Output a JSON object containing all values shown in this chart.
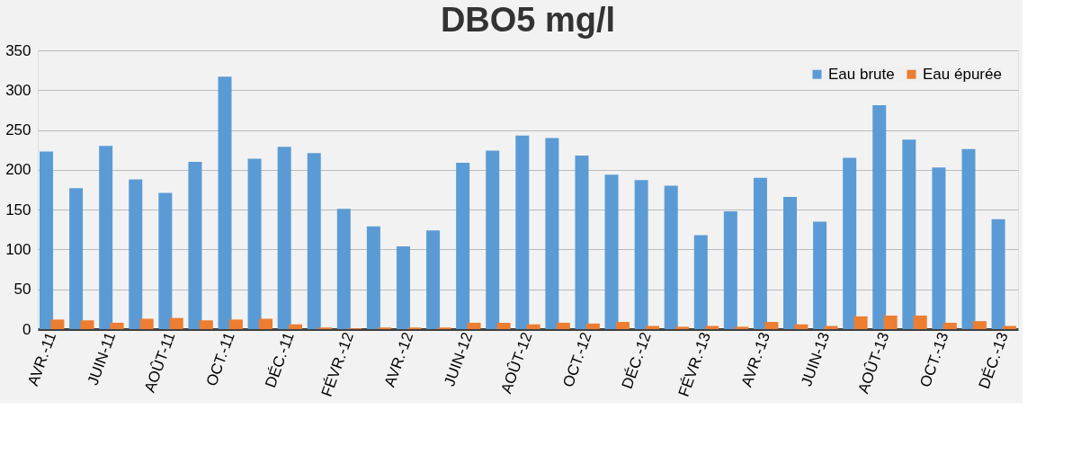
{
  "chart_data": {
    "type": "bar",
    "title": "DBO5 mg/l",
    "categories": [
      "AVR.-11",
      null,
      "JUIN-11",
      null,
      "AOÛT-11",
      null,
      "OCT.-11",
      null,
      "DÉC.-11",
      null,
      "FÉVR.-12",
      null,
      "AVR.-12",
      null,
      "JUIN-12",
      null,
      "AOÛT-12",
      null,
      "OCT.-12",
      null,
      "DÉC.-12",
      null,
      "FÉVR.-13",
      null,
      "AVR.-13",
      null,
      "JUIN-13",
      null,
      "AOÛT-13",
      null,
      "OCT.-13",
      null,
      "DÉC.-13"
    ],
    "series": [
      {
        "name": "Eau brute",
        "color": "#5b9bd5",
        "values": [
          223,
          177,
          230,
          188,
          171,
          210,
          317,
          214,
          229,
          221,
          151,
          129,
          104,
          124,
          209,
          224,
          243,
          240,
          218,
          194,
          187,
          180,
          118,
          148,
          190,
          166,
          135,
          215,
          281,
          238,
          203,
          226,
          138
        ]
      },
      {
        "name": "Eau épurée",
        "color": "#ed7d31",
        "values": [
          12,
          11,
          8,
          13,
          14,
          11,
          12,
          13,
          6,
          2,
          1,
          2,
          2,
          2,
          8,
          8,
          6,
          8,
          7,
          9,
          4,
          3,
          4,
          3,
          9,
          6,
          4,
          16,
          17,
          17,
          8,
          10,
          4
        ]
      }
    ],
    "ylim": [
      0,
      350
    ],
    "yticks": [
      0,
      50,
      100,
      150,
      200,
      250,
      300,
      350
    ],
    "grid": "y",
    "legend": "top right"
  }
}
